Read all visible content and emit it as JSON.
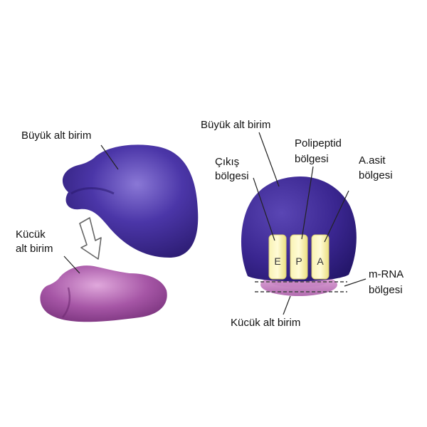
{
  "left_panel": {
    "large_subunit_label": "Büyük alt birim",
    "small_subunit_label": [
      "Kücük",
      "alt birim"
    ]
  },
  "right_panel": {
    "large_subunit_label": "Büyük alt birim",
    "exit_site_label": [
      "Çıkış",
      "bölgesi"
    ],
    "polypeptide_site_label": [
      "Polipeptid",
      "bölgesi"
    ],
    "aminoacid_site_label": [
      "A.asit",
      "bölgesi"
    ],
    "mrna_site_label": [
      "m-RNA",
      "bölgesi"
    ],
    "small_subunit_label": "Kücük alt birim",
    "slots": [
      "E",
      "P",
      "A"
    ]
  },
  "colors": {
    "large_subunit": "#3d2a8c",
    "small_subunit": "#9c4aa0",
    "site_slot": "#f5eea0"
  }
}
